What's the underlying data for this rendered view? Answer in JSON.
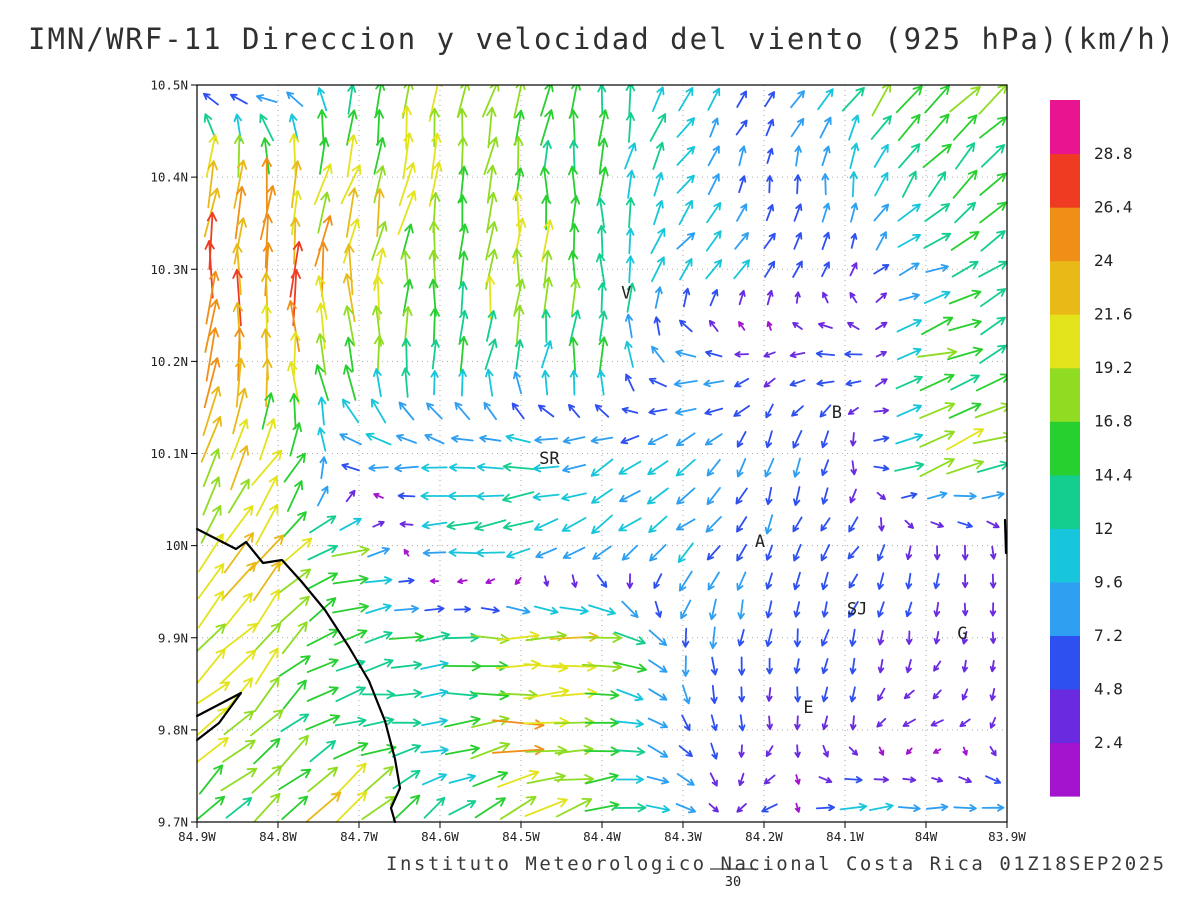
{
  "chart_data": {
    "type": "vector_field",
    "title": "IMN/WRF-11 Direccion y velocidad del viento (925 hPa)(km/h)",
    "footer": "Instituto Meteorologico Nacional Costa Rica 01Z18SEP2025",
    "reference_scale_label": "30",
    "lon_west_range": [
      84.9,
      83.9
    ],
    "lat_range": [
      9.7,
      10.5
    ],
    "x_ticks": {
      "labels": [
        "84.9W",
        "84.8W",
        "84.7W",
        "84.6W",
        "84.5W",
        "84.4W",
        "84.3W",
        "84.2W",
        "84.1W",
        "84W",
        "83.9W"
      ],
      "values": [
        84.9,
        84.8,
        84.7,
        84.6,
        84.5,
        84.4,
        84.3,
        84.2,
        84.1,
        84.0,
        83.9
      ]
    },
    "y_ticks": {
      "labels": [
        "10.5N",
        "10.4N",
        "10.3N",
        "10.2N",
        "10.1N",
        "10N",
        "9.9N",
        "9.8N",
        "9.7N"
      ],
      "values": [
        10.5,
        10.4,
        10.3,
        10.2,
        10.1,
        10.0,
        9.9,
        9.8,
        9.7
      ]
    },
    "grid_style": "dotted",
    "colorbar": {
      "unit": "km/h",
      "levels": [
        "2.4",
        "4.8",
        "7.2",
        "9.6",
        "12",
        "14.4",
        "16.8",
        "19.2",
        "21.6",
        "24",
        "26.4",
        "28.8"
      ],
      "level_values": [
        2.4,
        4.8,
        7.2,
        9.6,
        12,
        14.4,
        16.8,
        19.2,
        21.6,
        24,
        26.4,
        28.8
      ],
      "colors_bottom_to_top": [
        "#a414cf",
        "#6a2ae0",
        "#2e50f0",
        "#2f9ff2",
        "#17c6da",
        "#13ce8f",
        "#27cf2f",
        "#8fdc22",
        "#e3e31c",
        "#e9b917",
        "#ef8f16",
        "#ef3b22",
        "#e81490"
      ]
    },
    "stations": [
      {
        "label": "V",
        "lon_w": 84.37,
        "lat": 10.275
      },
      {
        "label": "B",
        "lon_w": 84.11,
        "lat": 10.145
      },
      {
        "label": "SR",
        "lon_w": 84.465,
        "lat": 10.095
      },
      {
        "label": "A",
        "lon_w": 84.205,
        "lat": 10.005
      },
      {
        "label": "SJ",
        "lon_w": 84.085,
        "lat": 9.932
      },
      {
        "label": "G",
        "lon_w": 83.955,
        "lat": 9.905
      },
      {
        "label": "E",
        "lon_w": 84.145,
        "lat": 9.825
      }
    ],
    "coastlines": [
      [
        [
          84.9,
          10.018
        ],
        [
          84.852,
          9.996
        ],
        [
          84.84,
          10.004
        ],
        [
          84.818,
          9.981
        ],
        [
          84.795,
          9.984
        ],
        [
          84.772,
          9.962
        ],
        [
          84.742,
          9.93
        ],
        [
          84.712,
          9.89
        ],
        [
          84.688,
          9.853
        ],
        [
          84.668,
          9.81
        ],
        [
          84.655,
          9.768
        ],
        [
          84.65,
          9.737
        ],
        [
          84.66,
          9.715
        ],
        [
          84.655,
          9.7
        ]
      ],
      [
        [
          84.9,
          9.815
        ],
        [
          84.846,
          9.84
        ],
        [
          84.873,
          9.808
        ],
        [
          84.9,
          9.789
        ]
      ],
      [
        [
          83.903,
          10.028
        ],
        [
          83.901,
          9.992
        ]
      ]
    ],
    "wind_grid": {
      "lon_w_start": 84.9,
      "lon_w_step": 0.1,
      "ncols": 11,
      "lat_start": 10.5,
      "lat_step": -0.1,
      "nrows": 9,
      "cell_format": "[direction_deg_ccw_from_east_pointing, speed_kmh]",
      "cells": [
        [
          [
            180,
            9
          ],
          [
            185,
            9
          ],
          [
            80,
            14
          ],
          [
            85,
            19
          ],
          [
            70,
            16
          ],
          [
            85,
            14
          ],
          [
            60,
            12
          ],
          [
            45,
            5
          ],
          [
            55,
            14
          ],
          [
            45,
            17
          ],
          [
            50,
            17
          ]
        ],
        [
          [
            80,
            24
          ],
          [
            85,
            24
          ],
          [
            70,
            20
          ],
          [
            80,
            19
          ],
          [
            85,
            15
          ],
          [
            90,
            14
          ],
          [
            55,
            10
          ],
          [
            80,
            6
          ],
          [
            85,
            9
          ],
          [
            50,
            14
          ],
          [
            45,
            15
          ]
        ],
        [
          [
            85,
            24
          ],
          [
            88,
            26
          ],
          [
            85,
            20
          ],
          [
            85,
            15
          ],
          [
            85,
            22
          ],
          [
            90,
            14
          ],
          [
            50,
            10
          ],
          [
            55,
            8
          ],
          [
            85,
            4
          ],
          [
            20,
            10
          ],
          [
            30,
            14
          ]
        ],
        [
          [
            85,
            23
          ],
          [
            95,
            20
          ],
          [
            100,
            17
          ],
          [
            85,
            14
          ],
          [
            80,
            13
          ],
          [
            85,
            14
          ],
          [
            170,
            10
          ],
          [
            200,
            4
          ],
          [
            185,
            9
          ],
          [
            15,
            17
          ],
          [
            40,
            14
          ]
        ],
        [
          [
            75,
            20
          ],
          [
            60,
            19
          ],
          [
            175,
            11
          ],
          [
            180,
            10
          ],
          [
            185,
            12
          ],
          [
            210,
            10
          ],
          [
            215,
            9
          ],
          [
            250,
            8
          ],
          [
            260,
            6
          ],
          [
            30,
            18
          ],
          [
            10,
            19
          ]
        ],
        [
          [
            55,
            23
          ],
          [
            50,
            20
          ],
          [
            10,
            15
          ],
          [
            185,
            13
          ],
          [
            190,
            13
          ],
          [
            215,
            10
          ],
          [
            220,
            9
          ],
          [
            255,
            6
          ],
          [
            230,
            6
          ],
          [
            265,
            5
          ],
          [
            270,
            4
          ]
        ],
        [
          [
            45,
            20
          ],
          [
            50,
            19
          ],
          [
            15,
            14
          ],
          [
            5,
            14
          ],
          [
            0,
            18
          ],
          [
            355,
            20
          ],
          [
            265,
            8
          ],
          [
            260,
            6
          ],
          [
            255,
            6
          ],
          [
            265,
            4
          ],
          [
            270,
            3
          ]
        ],
        [
          [
            40,
            19
          ],
          [
            45,
            17
          ],
          [
            10,
            15
          ],
          [
            0,
            11
          ],
          [
            5,
            22
          ],
          [
            0,
            15
          ],
          [
            300,
            7
          ],
          [
            270,
            4
          ],
          [
            265,
            4
          ],
          [
            190,
            5
          ],
          [
            275,
            3
          ]
        ],
        [
          [
            45,
            16
          ],
          [
            40,
            15
          ],
          [
            50,
            25
          ],
          [
            45,
            10
          ],
          [
            30,
            22
          ],
          [
            10,
            14
          ],
          [
            355,
            9
          ],
          [
            200,
            8
          ],
          [
            5,
            12
          ],
          [
            0,
            9
          ],
          [
            355,
            10
          ]
        ]
      ]
    }
  }
}
